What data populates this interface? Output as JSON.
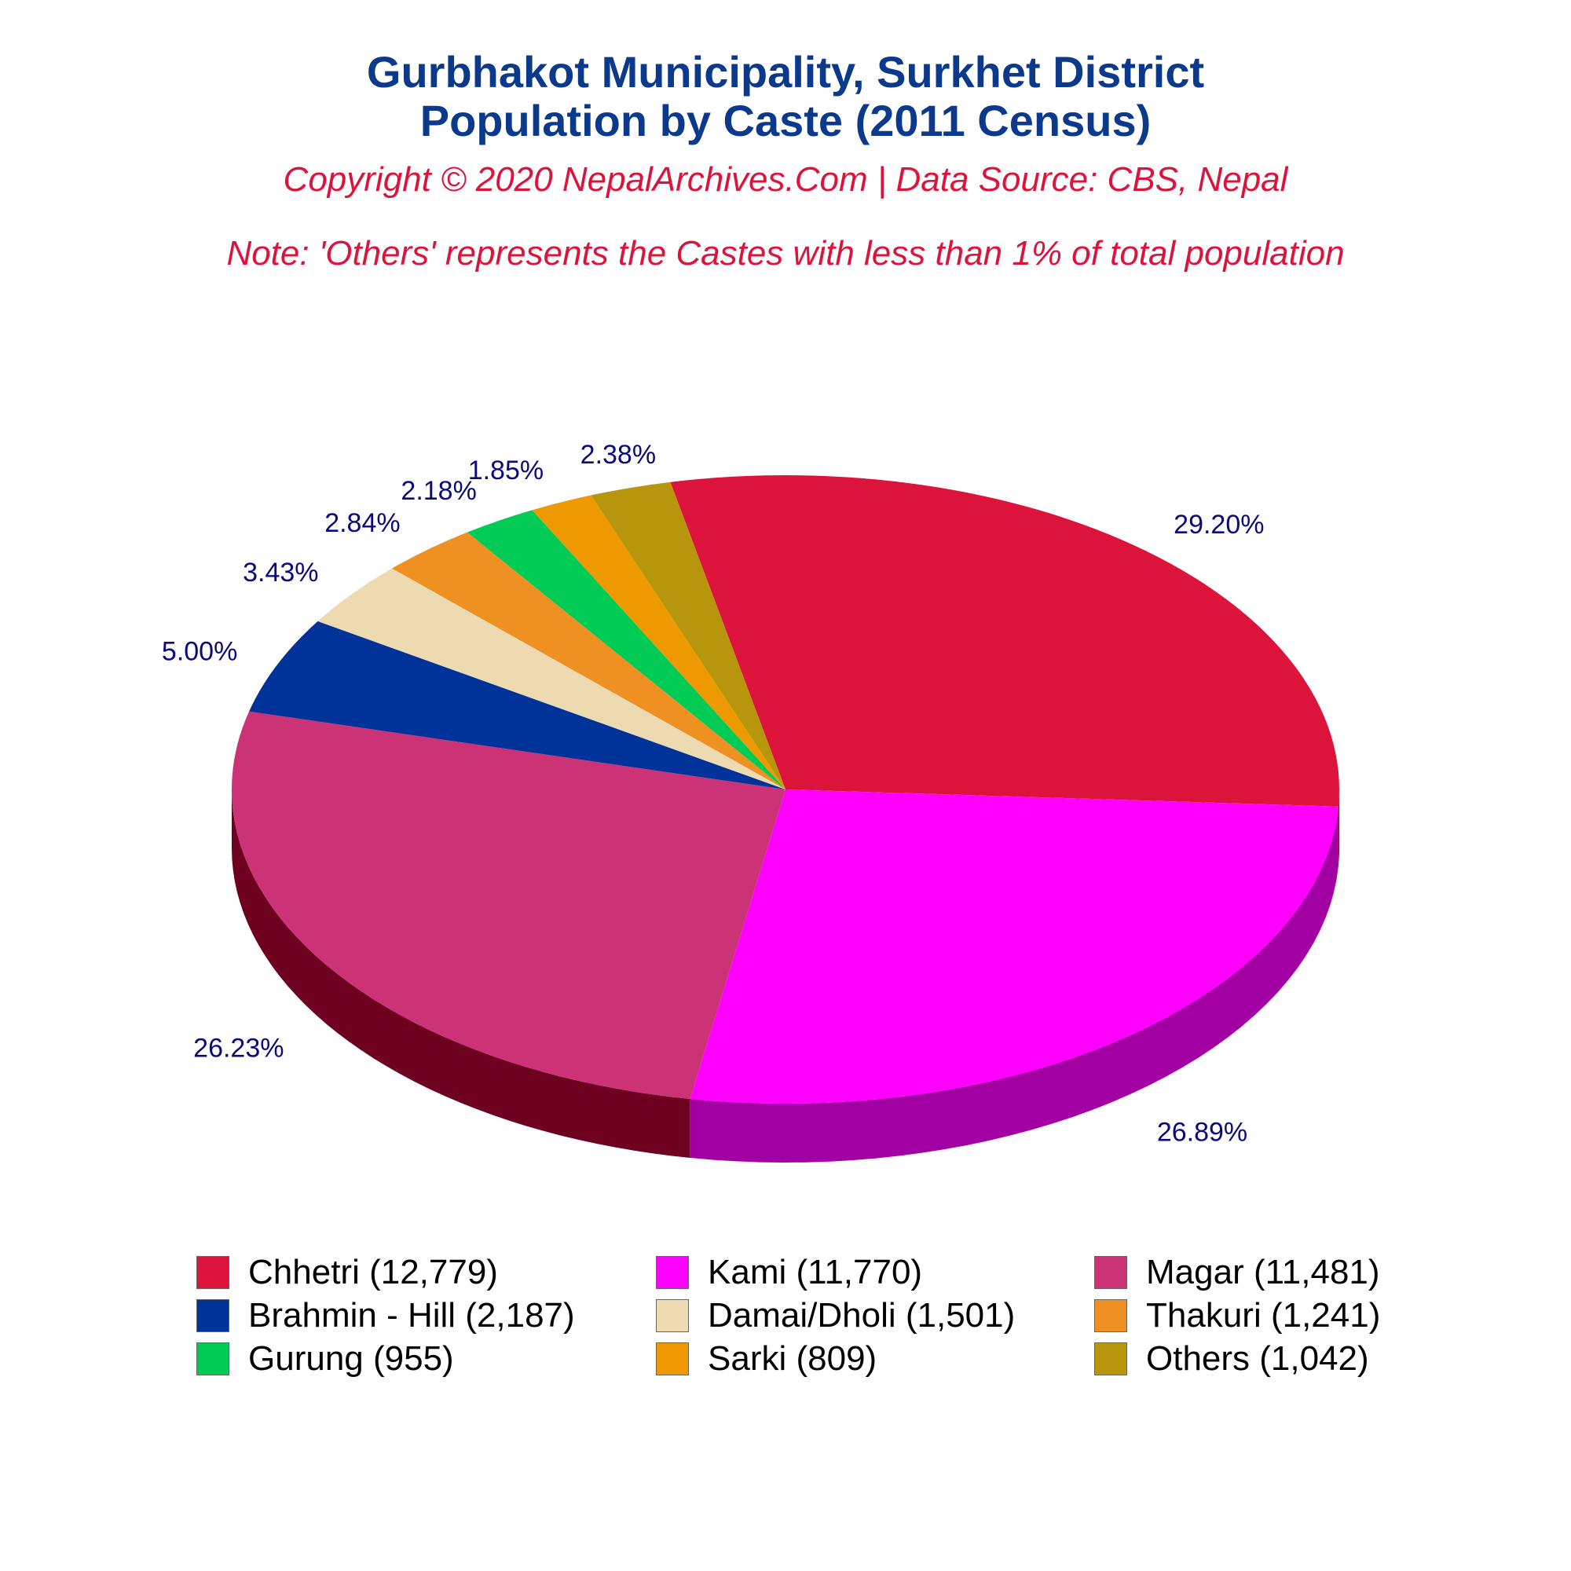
{
  "title": {
    "line1": "Gurbhakot Municipality, Surkhet District",
    "line2": "Population by Caste (2011 Census)"
  },
  "copyright": "Copyright © 2020 NepalArchives.Com | Data Source: CBS, Nepal",
  "note": "Note: 'Others' represents the Castes with less than 1% of total population",
  "chart_data": {
    "type": "pie",
    "style": "3d",
    "title": "Gurbhakot Municipality, Surkhet District Population by Caste (2011 Census)",
    "legend_position": "bottom",
    "slices": [
      {
        "name": "Chhetri",
        "value": 12779,
        "percent": 29.2,
        "percent_label": "29.20%",
        "legend_label": "Chhetri (12,779)",
        "color": "#DC143C",
        "side_color": "#8B0A23"
      },
      {
        "name": "Kami",
        "value": 11770,
        "percent": 26.89,
        "percent_label": "26.89%",
        "legend_label": "Kami (11,770)",
        "color": "#FF00FF",
        "side_color": "#A300A3"
      },
      {
        "name": "Magar",
        "value": 11481,
        "percent": 26.23,
        "percent_label": "26.23%",
        "legend_label": "Magar (11,481)",
        "color": "#CC3377",
        "side_color": "#6E0020"
      },
      {
        "name": "Brahmin - Hill",
        "value": 2187,
        "percent": 5.0,
        "percent_label": "5.00%",
        "legend_label": "Brahmin - Hill (2,187)",
        "color": "#003399",
        "side_color": "#000040"
      },
      {
        "name": "Damai/Dholi",
        "value": 1501,
        "percent": 3.43,
        "percent_label": "3.43%",
        "legend_label": "Damai/Dholi (1,501)",
        "color": "#EEDAB0",
        "side_color": "#8E7A50"
      },
      {
        "name": "Thakuri",
        "value": 1241,
        "percent": 2.84,
        "percent_label": "2.84%",
        "legend_label": "Thakuri (1,241)",
        "color": "#EE9022",
        "side_color": "#8E5010"
      },
      {
        "name": "Gurung",
        "value": 955,
        "percent": 2.18,
        "percent_label": "2.18%",
        "legend_label": "Gurung (955)",
        "color": "#00CC55",
        "side_color": "#007030"
      },
      {
        "name": "Sarki",
        "value": 809,
        "percent": 1.85,
        "percent_label": "1.85%",
        "legend_label": "Sarki (809)",
        "color": "#EE9900",
        "side_color": "#8E5A00"
      },
      {
        "name": "Others",
        "value": 1042,
        "percent": 2.38,
        "percent_label": "2.38%",
        "legend_label": "Others (1,042)",
        "color": "#B8960C",
        "side_color": "#6A5506"
      }
    ]
  }
}
